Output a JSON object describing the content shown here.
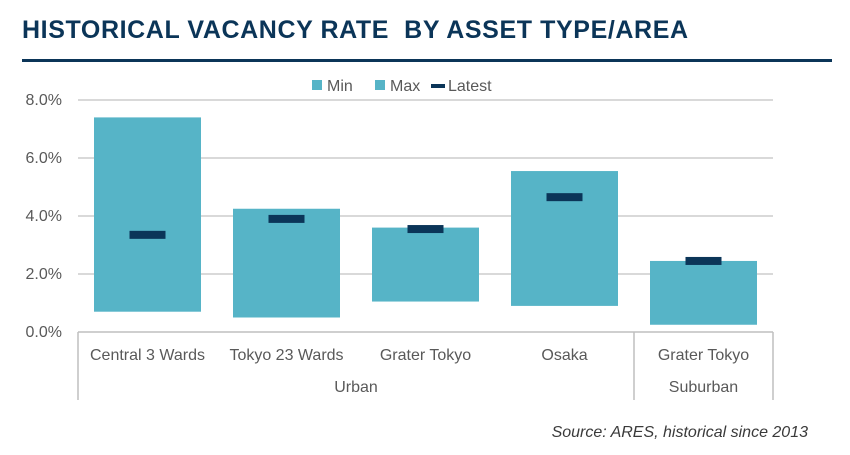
{
  "header": {
    "title": "HISTORICAL VACANCY RATE  BY ASSET TYPE/AREA"
  },
  "source_note": "Source: ARES, historical since 2013",
  "colors": {
    "bar": "#56b4c7",
    "latest": "#0b3558",
    "title": "#0b3558",
    "grid": "#d9d9d9",
    "axis_text": "#595959"
  },
  "chart_data": {
    "type": "bar",
    "title": "",
    "xlabel": "",
    "ylabel": "",
    "ylim": [
      0,
      8
    ],
    "yticks": [
      "0.0%",
      "2.0%",
      "4.0%",
      "6.0%",
      "8.0%"
    ],
    "ytick_values": [
      0,
      2,
      4,
      6,
      8
    ],
    "grid": true,
    "legend": {
      "position": "top-center",
      "entries": [
        "Min",
        "Max",
        "Latest"
      ]
    },
    "categories": [
      "Central 3 Wards",
      "Tokyo 23 Wards",
      "Grater Tokyo",
      "Osaka",
      "Grater Tokyo"
    ],
    "groups": [
      {
        "label": "Urban",
        "categories": [
          "Central 3 Wards",
          "Tokyo 23 Wards",
          "Grater Tokyo",
          "Osaka"
        ]
      },
      {
        "label": "Suburban",
        "categories": [
          "Grater Tokyo"
        ]
      }
    ],
    "series": [
      {
        "name": "Min",
        "values": [
          0.7,
          0.5,
          1.05,
          0.9,
          0.25
        ]
      },
      {
        "name": "Max",
        "values": [
          7.4,
          4.25,
          3.6,
          5.55,
          2.45
        ]
      },
      {
        "name": "Latest",
        "values": [
          3.35,
          3.9,
          3.55,
          4.65,
          2.45
        ]
      }
    ]
  }
}
